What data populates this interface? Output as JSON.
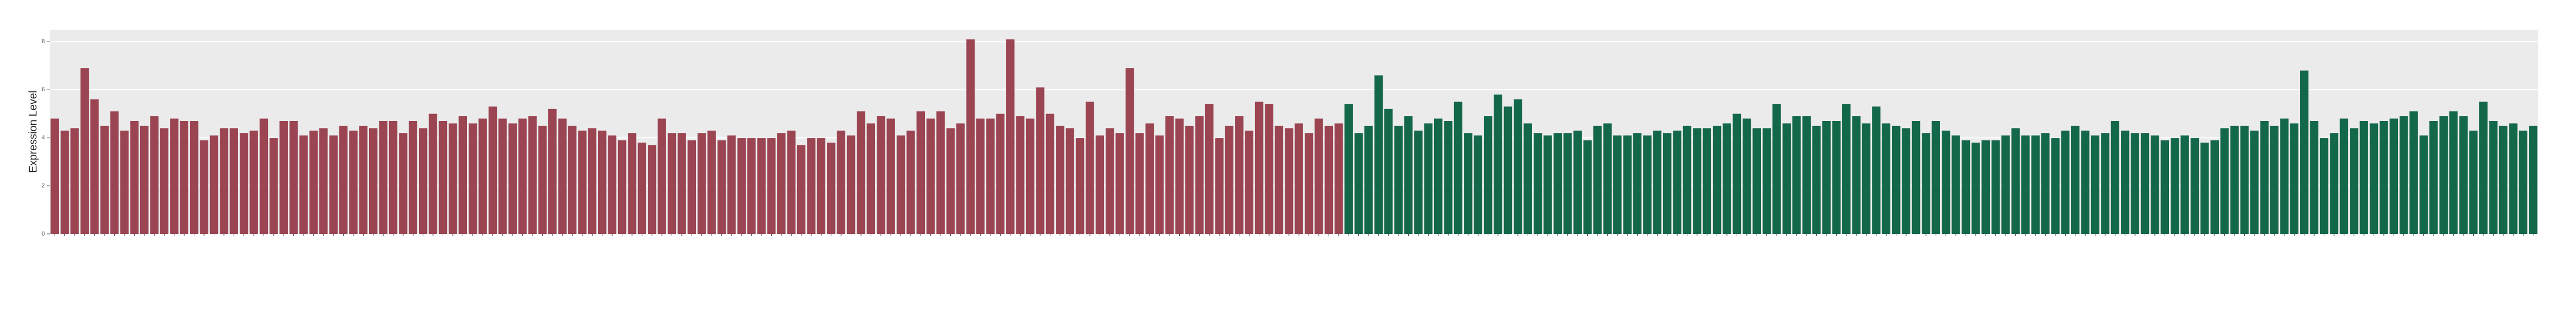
{
  "chart_data": {
    "type": "bar",
    "y_label": "Expression Level",
    "ylim": [
      0,
      8.5
    ],
    "yticks": [
      0,
      2,
      4,
      6,
      8
    ],
    "grid": true,
    "categories": [
      null,
      null,
      null,
      null,
      null,
      null,
      null,
      null,
      null,
      null,
      null,
      null,
      null,
      null,
      null,
      null,
      null,
      null,
      null,
      null,
      null,
      null,
      null,
      null,
      null,
      null,
      null,
      null,
      null,
      null,
      null,
      null,
      null,
      null,
      null,
      null,
      null,
      null,
      null,
      null,
      null,
      null,
      null,
      null,
      null,
      null,
      null,
      null,
      null,
      null,
      null,
      null,
      null,
      null,
      null,
      null,
      null,
      null,
      null,
      null,
      null,
      null,
      null,
      null,
      null,
      null,
      null,
      null,
      null,
      null,
      null,
      null,
      null,
      null,
      null,
      null,
      null,
      null,
      null,
      null,
      null,
      null,
      null,
      null,
      null,
      null,
      null,
      null,
      null,
      null,
      null,
      null,
      null,
      null,
      null,
      null,
      null,
      null,
      null,
      null,
      null,
      null,
      null,
      null,
      null,
      null,
      null,
      null,
      null,
      null,
      null,
      null,
      null,
      null,
      null,
      null,
      null,
      null,
      null,
      null,
      null,
      null,
      null,
      null,
      null,
      null,
      null,
      null,
      null,
      null,
      null,
      null,
      null,
      null,
      null,
      null,
      null,
      null,
      null,
      null,
      null,
      null,
      null,
      null,
      null,
      null,
      null,
      null,
      null,
      null,
      null,
      null,
      null,
      null,
      null,
      null,
      null,
      null,
      null,
      null,
      null,
      null,
      null,
      null,
      null,
      null,
      null,
      null,
      null,
      null,
      null,
      null,
      null,
      null,
      null,
      null,
      null,
      null,
      null,
      null,
      null,
      null,
      null,
      null,
      null,
      null,
      null,
      null,
      null,
      null,
      null,
      null,
      null,
      null,
      null,
      null,
      null,
      null,
      null,
      null,
      null,
      null,
      null,
      null,
      null,
      null,
      null,
      null,
      null,
      null,
      null,
      null,
      null,
      null,
      null,
      null,
      null,
      null,
      null,
      null,
      null,
      null,
      null,
      null,
      null,
      null,
      null,
      null,
      null,
      null,
      null,
      null,
      null,
      null,
      null,
      null,
      null,
      null,
      null,
      null,
      null,
      null,
      null,
      null,
      null,
      null,
      null,
      null,
      null,
      null
    ],
    "series": [
      {
        "color": "#9b4452",
        "values": [
          4.8,
          4.3,
          4.4,
          6.9,
          5.6,
          4.5,
          5.1,
          4.3,
          4.7,
          4.5,
          4.9,
          4.4,
          4.8,
          4.7,
          4.7,
          3.9,
          4.1,
          4.4,
          4.4,
          4.2,
          4.3,
          4.8,
          4.0,
          4.7,
          4.7,
          4.1,
          4.3,
          4.4,
          4.1,
          4.5,
          4.3,
          4.5,
          4.4,
          4.7,
          4.7,
          4.2,
          4.7,
          4.4,
          5.0,
          4.7,
          4.6,
          4.9,
          4.6,
          4.8,
          5.3,
          4.8,
          4.6,
          4.8,
          4.9,
          4.5,
          5.2,
          4.8,
          4.5,
          4.3,
          4.4,
          4.3,
          4.1,
          3.9,
          4.2,
          3.8,
          3.7,
          4.8,
          4.2,
          4.2,
          3.9,
          4.2,
          4.3,
          3.9,
          4.1,
          4.0,
          4.0,
          4.0,
          4.0,
          4.2,
          4.3,
          3.7,
          4.0,
          4.0,
          3.8,
          4.3,
          4.1,
          5.1,
          4.6,
          4.9,
          4.8,
          4.1,
          4.3,
          5.1,
          4.8,
          5.1,
          4.4,
          4.6,
          8.1,
          4.8,
          4.8,
          5.0,
          8.1,
          4.9,
          4.8,
          6.1,
          5.0,
          4.5,
          4.4,
          4.0,
          5.5,
          4.1,
          4.4,
          4.2,
          6.9,
          4.2,
          4.6,
          4.1,
          4.9,
          4.8,
          4.5,
          4.9,
          5.4,
          4.0,
          4.5,
          4.9,
          4.3,
          5.5,
          5.4,
          4.5,
          4.4,
          4.6,
          4.2,
          4.8,
          4.5,
          4.6,
          null,
          null,
          null,
          null,
          null,
          null,
          null,
          null,
          null,
          null,
          null,
          null,
          null,
          null,
          null,
          null,
          null,
          null,
          null,
          null,
          null,
          null,
          null,
          null,
          null,
          null,
          null,
          null,
          null,
          null,
          null,
          null,
          null,
          null,
          null,
          null,
          null,
          null,
          null,
          null,
          null,
          null,
          null,
          null,
          null,
          null,
          null,
          null,
          null,
          null,
          null,
          null,
          null,
          null,
          null,
          null,
          null,
          null,
          null,
          null,
          null,
          null,
          null,
          null,
          null,
          null,
          null,
          null,
          null,
          null,
          null,
          null,
          null,
          null,
          null,
          null,
          null,
          null,
          null,
          null,
          null,
          null,
          null,
          null,
          null,
          null,
          null,
          null,
          null,
          null,
          null,
          null,
          null,
          null,
          null,
          null,
          null,
          null,
          null,
          null,
          null,
          null,
          null,
          null,
          null,
          null,
          null,
          null,
          null,
          null,
          null,
          null,
          null,
          null,
          null,
          null,
          null,
          null,
          null,
          null
        ]
      },
      {
        "color": "#14684a",
        "values": [
          null,
          null,
          null,
          null,
          null,
          null,
          null,
          null,
          null,
          null,
          null,
          null,
          null,
          null,
          null,
          null,
          null,
          null,
          null,
          null,
          null,
          null,
          null,
          null,
          null,
          null,
          null,
          null,
          null,
          null,
          null,
          null,
          null,
          null,
          null,
          null,
          null,
          null,
          null,
          null,
          null,
          null,
          null,
          null,
          null,
          null,
          null,
          null,
          null,
          null,
          null,
          null,
          null,
          null,
          null,
          null,
          null,
          null,
          null,
          null,
          null,
          null,
          null,
          null,
          null,
          null,
          null,
          null,
          null,
          null,
          null,
          null,
          null,
          null,
          null,
          null,
          null,
          null,
          null,
          null,
          null,
          null,
          null,
          null,
          null,
          null,
          null,
          null,
          null,
          null,
          null,
          null,
          null,
          null,
          null,
          null,
          null,
          null,
          null,
          null,
          null,
          null,
          null,
          null,
          null,
          null,
          null,
          null,
          null,
          null,
          null,
          null,
          null,
          null,
          null,
          null,
          null,
          null,
          null,
          null,
          null,
          null,
          null,
          null,
          null,
          null,
          null,
          null,
          null,
          null,
          5.4,
          4.2,
          4.5,
          6.6,
          5.2,
          4.5,
          4.9,
          4.3,
          4.6,
          4.8,
          4.7,
          5.5,
          4.2,
          4.1,
          4.9,
          5.8,
          5.3,
          5.6,
          4.6,
          4.2,
          4.1,
          4.2,
          4.2,
          4.3,
          3.9,
          4.5,
          4.6,
          4.1,
          4.1,
          4.2,
          4.1,
          4.3,
          4.2,
          4.3,
          4.5,
          4.4,
          4.4,
          4.5,
          4.6,
          5.0,
          4.8,
          4.4,
          4.4,
          5.4,
          4.6,
          4.9,
          4.9,
          4.5,
          4.7,
          4.7,
          5.4,
          4.9,
          4.6,
          5.3,
          4.6,
          4.5,
          4.4,
          4.7,
          4.2,
          4.7,
          4.3,
          4.1,
          3.9,
          3.8,
          3.9,
          3.9,
          4.1,
          4.4,
          4.1,
          4.1,
          4.2,
          4.0,
          4.3,
          4.5,
          4.3,
          4.1,
          4.2,
          4.7,
          4.3,
          4.2,
          4.2,
          4.1,
          3.9,
          4.0,
          4.1,
          4.0,
          3.8,
          3.9,
          4.4,
          4.5,
          4.5,
          4.3,
          4.7,
          4.5,
          4.8,
          4.6,
          6.8,
          4.7,
          4.0,
          4.2,
          4.8,
          4.4,
          4.7,
          4.6,
          4.7,
          4.8,
          4.9,
          5.1,
          4.1,
          4.7,
          4.9,
          5.1,
          4.9,
          4.3,
          5.5,
          4.7,
          4.5,
          4.6,
          4.3,
          4.5
        ]
      }
    ]
  }
}
